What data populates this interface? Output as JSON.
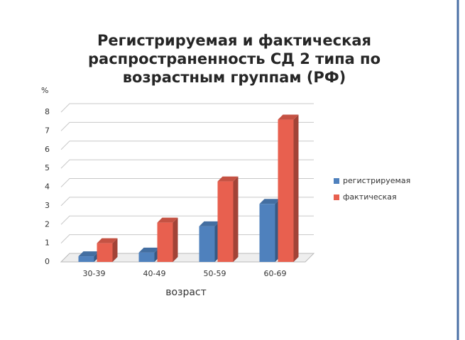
{
  "chart_data": {
    "type": "bar3d",
    "title": "Регистрируемая и фактическая распространенность СД 2 типа по возрастным группам (РФ)",
    "y_label": "%",
    "x_label": "возраст",
    "categories": [
      "30-39",
      "40-49",
      "50-59",
      "60-69"
    ],
    "series": [
      {
        "name": "регистрируемая",
        "color": "#4f81bd",
        "values": [
          0.3,
          0.5,
          1.9,
          3.1
        ]
      },
      {
        "name": "фактическая",
        "color": "#e8604f",
        "values": [
          1.0,
          2.1,
          4.3,
          7.6
        ]
      }
    ],
    "ylim": [
      0,
      8
    ],
    "yticks": [
      0,
      1,
      2,
      3,
      4,
      5,
      6,
      7,
      8
    ],
    "grid": true,
    "legend": "right"
  }
}
